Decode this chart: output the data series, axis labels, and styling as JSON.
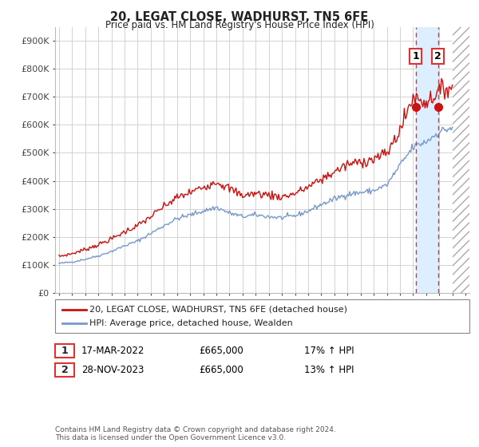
{
  "title": "20, LEGAT CLOSE, WADHURST, TN5 6FE",
  "subtitle": "Price paid vs. HM Land Registry's House Price Index (HPI)",
  "ylabel_ticks": [
    "£0",
    "£100K",
    "£200K",
    "£300K",
    "£400K",
    "£500K",
    "£600K",
    "£700K",
    "£800K",
    "£900K"
  ],
  "ytick_values": [
    0,
    100000,
    200000,
    300000,
    400000,
    500000,
    600000,
    700000,
    800000,
    900000
  ],
  "ylim": [
    0,
    950000
  ],
  "xlim_start": 1994.7,
  "xlim_end": 2026.3,
  "x_ticks": [
    1995,
    1996,
    1997,
    1998,
    1999,
    2000,
    2001,
    2002,
    2003,
    2004,
    2005,
    2006,
    2007,
    2008,
    2009,
    2010,
    2011,
    2012,
    2013,
    2014,
    2015,
    2016,
    2017,
    2018,
    2019,
    2020,
    2021,
    2022,
    2023,
    2024,
    2025,
    2026
  ],
  "hpi_color": "#7799cc",
  "price_color": "#cc1111",
  "marker_color": "#cc1111",
  "vline_color": "#dd3333",
  "grid_color": "#cccccc",
  "background_color": "#ffffff",
  "legend_label_price": "20, LEGAT CLOSE, WADHURST, TN5 6FE (detached house)",
  "legend_label_hpi": "HPI: Average price, detached house, Wealden",
  "annotation1_num": "1",
  "annotation1_date": "17-MAR-2022",
  "annotation1_price": "£665,000",
  "annotation1_pct": "17% ↑ HPI",
  "annotation2_num": "2",
  "annotation2_date": "28-NOV-2023",
  "annotation2_price": "£665,000",
  "annotation2_pct": "13% ↑ HPI",
  "footer": "Contains HM Land Registry data © Crown copyright and database right 2024.\nThis data is licensed under the Open Government Licence v3.0.",
  "sale1_x": 2022.21,
  "sale1_y": 665000,
  "sale2_x": 2023.91,
  "sale2_y": 665000,
  "vline1_x": 2022.21,
  "vline2_x": 2023.91,
  "hatch_start": 2025.0,
  "shade_color": "#ddeeff",
  "hatch_color": "#cccccc"
}
